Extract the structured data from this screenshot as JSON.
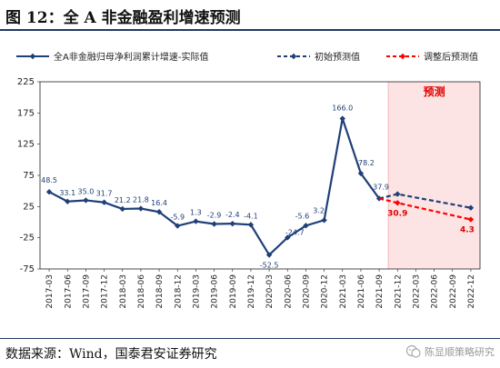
{
  "figure": {
    "title": "图 12：全 A 非金融盈利增速预测",
    "source": "数据来源：Wind，国泰君安证券研究",
    "watermark": "陈显顺策略研究"
  },
  "chart_data": {
    "type": "line",
    "title": "",
    "xlabel": "",
    "ylabel": "",
    "ylim": [
      -75,
      225
    ],
    "yticks": [
      -75,
      -25,
      25,
      75,
      125,
      175,
      225
    ],
    "grid": false,
    "legend_position": "top",
    "categories": [
      "2017-03",
      "2017-06",
      "2017-09",
      "2017-12",
      "2018-03",
      "2018-06",
      "2018-09",
      "2018-12",
      "2019-03",
      "2019-06",
      "2019-09",
      "2019-12",
      "2020-03",
      "2020-06",
      "2020-09",
      "2020-12",
      "2021-03",
      "2021-06",
      "2021-09",
      "2021-12",
      "2022-03",
      "2022-06",
      "2022-09",
      "2022-12"
    ],
    "forecast_region": {
      "start": "2021-12",
      "end": "2022-12",
      "label": "预测",
      "color": "#fde4e4",
      "label_color": "#e00000"
    },
    "series": [
      {
        "name": "全A非金融归母净利润累计增速-实际值",
        "style": "solid",
        "color": "#1f3f78",
        "marker": "diamond",
        "points": [
          {
            "x": "2017-03",
            "y": 48.5
          },
          {
            "x": "2017-06",
            "y": 33.1
          },
          {
            "x": "2017-09",
            "y": 35.0
          },
          {
            "x": "2017-12",
            "y": 31.7
          },
          {
            "x": "2018-03",
            "y": 21.2
          },
          {
            "x": "2018-06",
            "y": 21.8
          },
          {
            "x": "2018-09",
            "y": 16.4
          },
          {
            "x": "2018-12",
            "y": -5.9
          },
          {
            "x": "2019-03",
            "y": 1.3
          },
          {
            "x": "2019-06",
            "y": -2.9
          },
          {
            "x": "2019-09",
            "y": -2.4
          },
          {
            "x": "2019-12",
            "y": -4.1
          },
          {
            "x": "2020-03",
            "y": -52.5
          },
          {
            "x": "2020-06",
            "y": -24.7
          },
          {
            "x": "2020-09",
            "y": -5.6
          },
          {
            "x": "2020-12",
            "y": 3.2
          },
          {
            "x": "2021-03",
            "y": 166.0
          },
          {
            "x": "2021-06",
            "y": 78.2
          },
          {
            "x": "2021-09",
            "y": 37.9
          }
        ],
        "labels": [
          "48.5",
          "33.1",
          "35.0",
          "31.7",
          "21.2",
          "21.8",
          "16.4",
          "-5.9",
          "1.3",
          "-2.9",
          "-2.4",
          "-4.1",
          "-52.5",
          "-24.7",
          "-5.6",
          "3.2",
          "166.0",
          "78.2",
          "37.9"
        ]
      },
      {
        "name": "初始预测值",
        "style": "dashed",
        "color": "#1f3f78",
        "marker": "diamond",
        "points": [
          {
            "x": "2021-09",
            "y": 37.9
          },
          {
            "x": "2021-12",
            "y": 45.0
          },
          {
            "x": "2022-12",
            "y": 23.0
          }
        ],
        "labels": []
      },
      {
        "name": "调整后预测值",
        "style": "dashed",
        "color": "#ff0000",
        "marker": "diamond",
        "points": [
          {
            "x": "2021-09",
            "y": 37.9
          },
          {
            "x": "2021-12",
            "y": 30.9
          },
          {
            "x": "2022-12",
            "y": 4.3
          }
        ],
        "labels": [
          "",
          "30.9",
          "4.3"
        ],
        "label_color": "#e00000"
      }
    ]
  }
}
